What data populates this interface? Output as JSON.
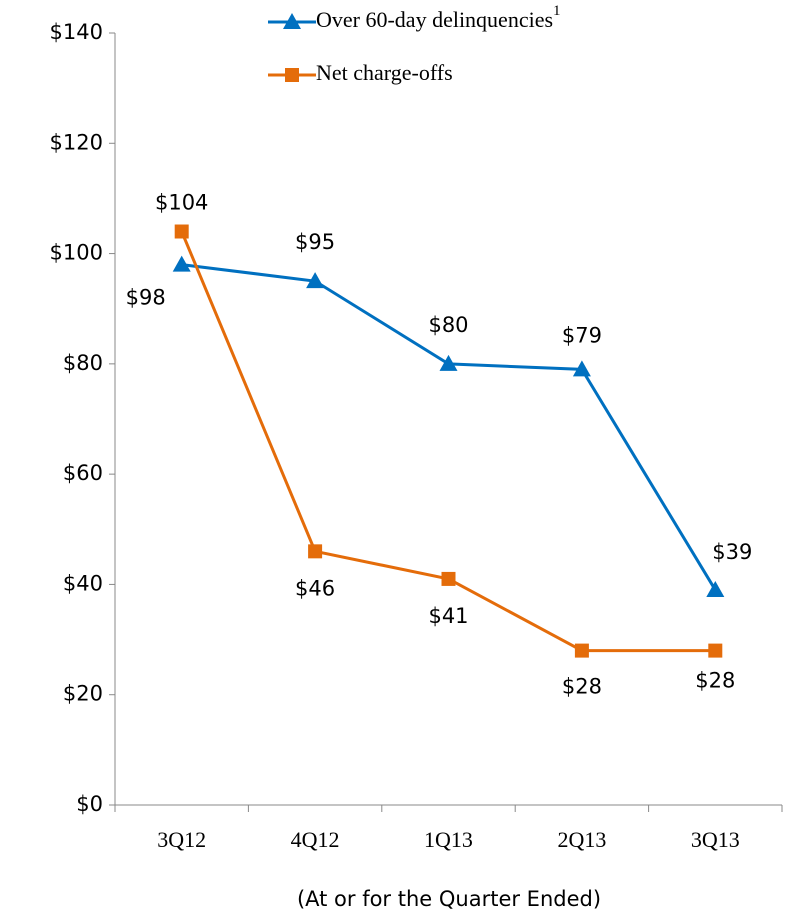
{
  "chart_data": {
    "type": "line",
    "x_label": "(At or for the Quarter Ended)",
    "categories": [
      "3Q12",
      "4Q12",
      "1Q13",
      "2Q13",
      "3Q13"
    ],
    "series": [
      {
        "name": "Over 60-day delinquencies",
        "name_superscript": "1",
        "color": "#0070c0",
        "marker": "triangle",
        "values": [
          98,
          95,
          80,
          79,
          39
        ],
        "value_labels": [
          "$98",
          "$95",
          "$80",
          "$79",
          "$39"
        ]
      },
      {
        "name": "Net charge-offs",
        "color": "#e46c0a",
        "marker": "square",
        "values": [
          104,
          46,
          41,
          28,
          28
        ],
        "value_labels": [
          "$104",
          "$46",
          "$41",
          "$28",
          "$28"
        ]
      }
    ],
    "ylim": [
      0,
      140
    ],
    "yticks": [
      {
        "value": 0,
        "label": "$0"
      },
      {
        "value": 20,
        "label": "$20"
      },
      {
        "value": 40,
        "label": "$40"
      },
      {
        "value": 60,
        "label": "$60"
      },
      {
        "value": 80,
        "label": "$80"
      },
      {
        "value": 100,
        "label": "$100"
      },
      {
        "value": 120,
        "label": "$120"
      },
      {
        "value": 140,
        "label": "$140"
      }
    ],
    "legend": "top",
    "grid": false
  }
}
